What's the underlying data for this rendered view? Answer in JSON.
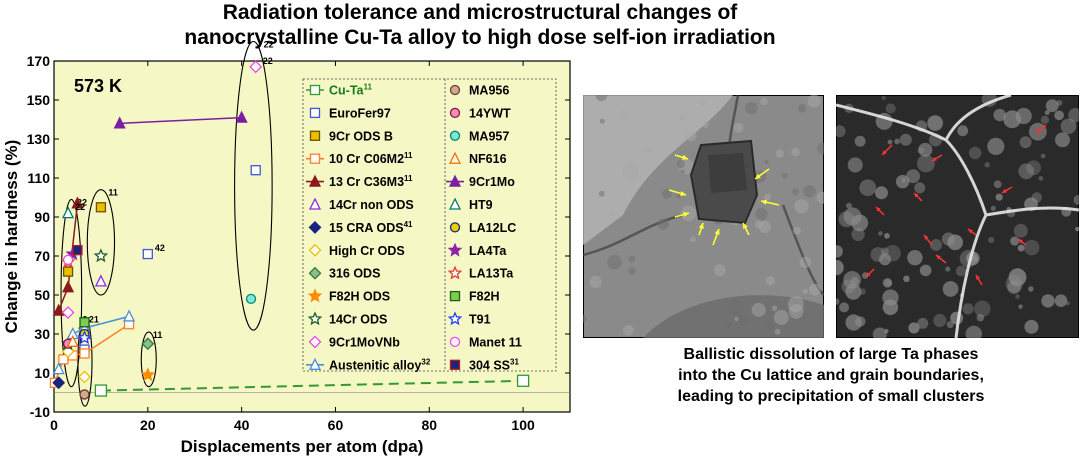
{
  "header": {
    "title_line1": "Radiation tolerance and microstructural changes of",
    "title_line2": "nanocrystalline Cu-Ta alloy to high dose self-ion irradiation"
  },
  "chart_data": {
    "type": "scatter",
    "xlabel": "Displacements per atom (dpa)",
    "ylabel": "Change in hardness (%)",
    "xlim": [
      0,
      110
    ],
    "ylim": [
      -10,
      170
    ],
    "xticks": [
      0,
      20,
      40,
      60,
      80,
      100
    ],
    "yticks": [
      -10,
      10,
      30,
      50,
      70,
      90,
      110,
      130,
      150,
      170
    ],
    "temperature": "573 K",
    "plot_background": "#f5f7c4",
    "grid": false,
    "legend_position": "top-right",
    "series": [
      {
        "name": "Cu-Ta",
        "sup": "11",
        "color": "#339933",
        "marker": "square",
        "fill": "none",
        "line": "dashed",
        "points": [
          [
            10,
            1
          ],
          [
            100,
            6
          ]
        ]
      },
      {
        "name": "EuroFer97",
        "color": "#4455dd",
        "marker": "square",
        "fill": "none",
        "points": [
          [
            20,
            71
          ],
          [
            43,
            114
          ],
          [
            6.5,
            22
          ]
        ],
        "labels": [
          {
            "i": 0,
            "text": "42"
          }
        ]
      },
      {
        "name": "9Cr ODS B",
        "color": "#6b5200",
        "marker": "square",
        "fill": "#e8c000",
        "points": [
          [
            10,
            95
          ],
          [
            3,
            62
          ]
        ]
      },
      {
        "name": "10 Cr C06M2",
        "sup": "11",
        "color": "#ff7f27",
        "marker": "square",
        "fill": "none",
        "line": "solid",
        "points": [
          [
            0.2,
            5
          ],
          [
            2,
            17
          ],
          [
            4,
            19
          ],
          [
            6.5,
            20
          ],
          [
            16,
            35
          ]
        ]
      },
      {
        "name": "13 Cr C36M3",
        "sup": "11",
        "color": "#8b1a1a",
        "marker": "triangle",
        "fill": "#8b1a1a",
        "line": "solid",
        "points": [
          [
            1,
            42
          ],
          [
            3,
            54
          ],
          [
            5,
            97
          ]
        ]
      },
      {
        "name": "14Cr non ODS",
        "color": "#8a2be2",
        "marker": "triangle",
        "fill": "none",
        "points": [
          [
            10,
            57
          ],
          [
            6.5,
            30
          ]
        ]
      },
      {
        "name": "15 CRA ODS",
        "sup": "41",
        "color": "#1a237e",
        "marker": "diamond",
        "fill": "#1a237e",
        "points": [
          [
            1,
            5
          ]
        ]
      },
      {
        "name": "High Cr ODS",
        "color": "#e8c000",
        "marker": "diamond",
        "fill": "none",
        "points": [
          [
            3,
            21
          ],
          [
            6.5,
            8
          ]
        ]
      },
      {
        "name": "316 ODS",
        "color": "#2e7d32",
        "marker": "diamond",
        "fill": "#8fbc8f",
        "points": [
          [
            20,
            25
          ],
          [
            6.5,
            33
          ]
        ]
      },
      {
        "name": "F82H ODS",
        "color": "#ff8c00",
        "marker": "star",
        "fill": "#ff8c00",
        "points": [
          [
            20,
            9
          ]
        ]
      },
      {
        "name": "14Cr ODS",
        "color": "#1b5e20",
        "marker": "star",
        "fill": "none",
        "points": [
          [
            10,
            70
          ],
          [
            3,
            25
          ]
        ]
      },
      {
        "name": "9Cr1MoVNb",
        "color": "#ee44ee",
        "marker": "diamond",
        "fill": "none",
        "points": [
          [
            43,
            167
          ],
          [
            3,
            41
          ]
        ],
        "labels": [
          {
            "i": 0,
            "text": "22"
          }
        ]
      },
      {
        "name": "Austenitic alloy",
        "sup": "32",
        "color": "#4a90d9",
        "marker": "triangle",
        "fill": "none",
        "line": "solid",
        "points": [
          [
            1,
            12
          ],
          [
            4,
            30
          ],
          [
            6.5,
            33
          ],
          [
            16,
            39
          ]
        ]
      },
      {
        "name": "MA956",
        "color": "#5d4037",
        "marker": "circle",
        "fill": "#d7a98c",
        "points": [
          [
            6.5,
            -1
          ]
        ]
      },
      {
        "name": "14YWT",
        "color": "#880e4f",
        "marker": "circle",
        "fill": "#f48fb1",
        "points": [
          [
            3,
            25
          ]
        ]
      },
      {
        "name": "MA957",
        "color": "#00897b",
        "marker": "circle",
        "fill": "#80e8d0",
        "points": [
          [
            42,
            48
          ]
        ]
      },
      {
        "name": "NF616",
        "color": "#ff6d00",
        "marker": "triangle",
        "fill": "none",
        "points": [
          [
            4,
            26
          ]
        ]
      },
      {
        "name": "9Cr1Mo",
        "color": "#7b1fa2",
        "marker": "triangle",
        "fill": "#7b1fa2",
        "line": "solid",
        "points": [
          [
            14,
            138
          ],
          [
            40,
            141
          ]
        ]
      },
      {
        "name": "HT9",
        "color": "#00796b",
        "marker": "triangle",
        "fill": "none",
        "points": [
          [
            3,
            92
          ]
        ],
        "labels": [
          {
            "i": 0,
            "text": "22"
          }
        ]
      },
      {
        "name": "LA12LC",
        "color": "#1a237e",
        "marker": "circle",
        "fill": "#e8d000",
        "points": [
          [
            6.5,
            30
          ]
        ]
      },
      {
        "name": "LA4Ta",
        "color": "#8e24aa",
        "marker": "star",
        "fill": "#8e24aa",
        "points": [
          [
            4,
            71
          ]
        ]
      },
      {
        "name": "LA13Ta",
        "color": "#e53935",
        "marker": "star",
        "fill": "none",
        "points": [
          [
            3,
            67
          ]
        ]
      },
      {
        "name": "F82H",
        "color": "#1b5e20",
        "marker": "square",
        "fill": "#7ccf4a",
        "points": [
          [
            6.5,
            36
          ]
        ]
      },
      {
        "name": "T91",
        "color": "#1e40ff",
        "marker": "star",
        "fill": "none",
        "points": [
          [
            6.5,
            28
          ]
        ]
      },
      {
        "name": "Manet 11",
        "color": "#ee44ee",
        "marker": "circle",
        "fill": "none",
        "points": [
          [
            3,
            68
          ]
        ]
      },
      {
        "name": "304 SS",
        "sup": "31",
        "color": "#b71c1c",
        "marker": "square",
        "fill": "#1a237e",
        "points": [
          [
            5,
            73
          ]
        ]
      }
    ],
    "ellipses": [
      {
        "cx": 42.5,
        "cy": 106,
        "rx": 4,
        "ry": 74,
        "label": "22"
      },
      {
        "cx": 10,
        "cy": 77,
        "rx": 2.9,
        "ry": 27,
        "label": "11"
      },
      {
        "cx": 3.7,
        "cy": 51,
        "rx": 2.2,
        "ry": 48,
        "label": "22"
      },
      {
        "cx": 6.6,
        "cy": 16,
        "rx": 1.5,
        "ry": 23,
        "label": "21"
      },
      {
        "cx": 20.2,
        "cy": 17,
        "rx": 1.6,
        "ry": 14,
        "label": "11"
      }
    ]
  },
  "micrographs": [
    {
      "name": "tem-image-left",
      "background": "#8a8a8a"
    },
    {
      "name": "tem-image-right",
      "background": "#2a2a2a"
    }
  ],
  "caption": {
    "line1": "Ballistic dissolution of large Ta phases",
    "line2": "into the Cu lattice and grain boundaries,",
    "line3": "leading to precipitation of small clusters"
  }
}
